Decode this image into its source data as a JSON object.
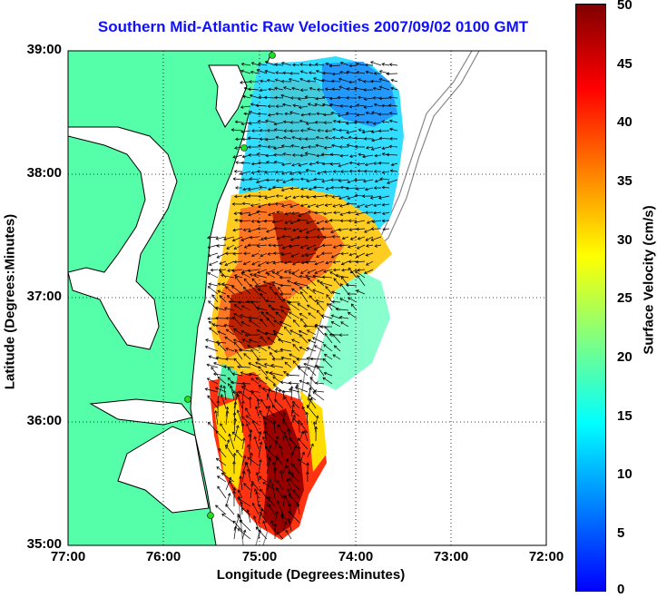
{
  "title": "Southern Mid-Atlantic Raw Velocities 2007/09/02 0100 GMT",
  "xaxis": {
    "label": "Longitude (Degrees:Minutes)",
    "ticks": [
      "77:00",
      "76:00",
      "75:00",
      "74:00",
      "73:00",
      "72:00"
    ]
  },
  "yaxis": {
    "label": "Latitude (Degrees:Minutes)",
    "ticks": [
      "39:00",
      "38:00",
      "37:00",
      "36:00",
      "35:00"
    ]
  },
  "colorbar": {
    "label": "Surface Velocity (cm/s)",
    "ticks": [
      "50",
      "45",
      "40",
      "35",
      "30",
      "25",
      "20",
      "15",
      "10",
      "5",
      "0"
    ],
    "min": 0,
    "max": 50,
    "colormap": [
      "#0000ff",
      "#0080ff",
      "#00ffff",
      "#80ff80",
      "#ffff00",
      "#ff8000",
      "#ff0000",
      "#800000"
    ]
  },
  "map": {
    "lon_range": [
      -77,
      -72
    ],
    "lat_range": [
      35,
      39
    ],
    "land_color": "#55ffaa",
    "coastline_color": "#000000",
    "bathymetry_color": "#888888",
    "grid": "dotted",
    "station_marker_color": "#22dd22"
  }
}
